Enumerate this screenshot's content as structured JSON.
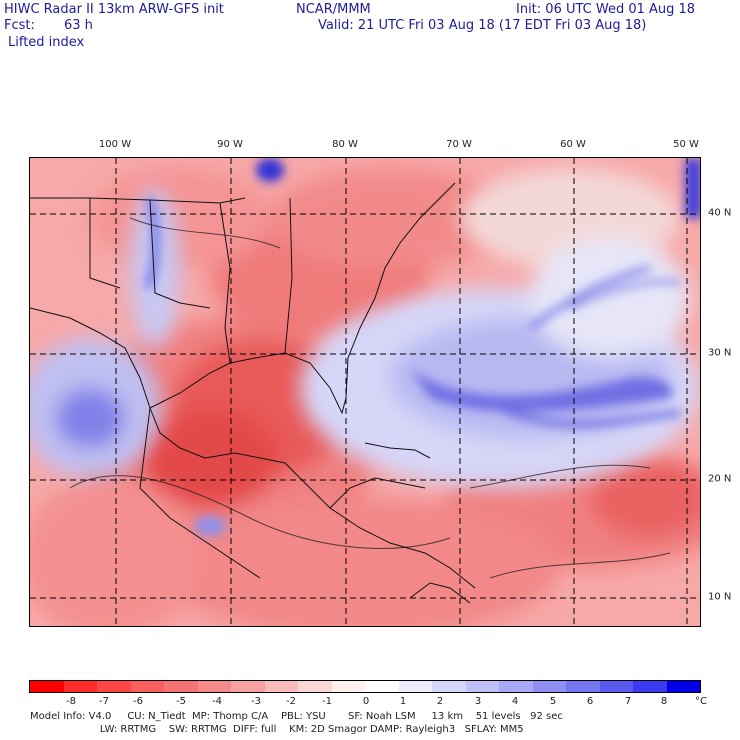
{
  "header": {
    "title": "HIWC Radar II 13km ARW-GFS init",
    "org": "NCAR/MMM",
    "init": "Init: 06 UTC Wed 01 Aug 18",
    "fcst_label": "Fcst:",
    "fcst_value": "63 h",
    "valid": "Valid: 21 UTC Fri 03 Aug 18 (17 EDT Fri 03 Aug 18)",
    "field": "Lifted index"
  },
  "map": {
    "lon_labels": [
      "100 W",
      "90 W",
      "80 W",
      "70 W",
      "60 W",
      "50 W"
    ],
    "lat_labels": [
      "40 N",
      "30 N",
      "20 N",
      "10 N"
    ],
    "colors": {
      "border": "#000000",
      "grid": "#000000",
      "warm_strong": "#e84848",
      "warm_mid": "#f07a7a",
      "warm_light": "#f8c8c8",
      "cool_light": "#dcdcf6",
      "cool_mid": "#9a9af0",
      "cool_strong": "#4848e0"
    }
  },
  "colorbar": {
    "labels": [
      "-8",
      "-7",
      "-6",
      "-5",
      "-4",
      "-3",
      "-2",
      "-1",
      "0",
      "1",
      "2",
      "3",
      "4",
      "5",
      "6",
      "7",
      "8"
    ],
    "unit": "°C",
    "colors": [
      "#ff0000",
      "#ff2a2a",
      "#ff4545",
      "#f86060",
      "#f47474",
      "#f48a8a",
      "#f6a2a2",
      "#f8bcbc",
      "#fad6d6",
      "#fff0f0",
      "#ffffff",
      "#ececfc",
      "#d6d6fa",
      "#c0c0f8",
      "#a8a8f6",
      "#9090f4",
      "#7676f2",
      "#5a5af0",
      "#3a3aee",
      "#0000e8"
    ]
  },
  "footer": {
    "line1": "Model Info: V4.0     CU: N_Tiedt  MP: Thomp C/A    PBL: YSU       SF: Noah LSM     13 km    51 levels   92 sec",
    "line2": "                      LW: RRTMG    SW: RRTMG  DIFF: full    KM: 2D Smagor DAMP: Rayleigh3   SFLAY: MM5"
  }
}
